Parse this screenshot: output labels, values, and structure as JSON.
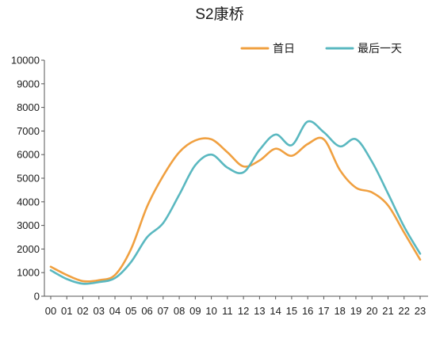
{
  "chart_data": {
    "type": "line",
    "title": "S2康桥",
    "xlabel": "",
    "ylabel": "",
    "categories": [
      "00",
      "01",
      "02",
      "03",
      "04",
      "05",
      "06",
      "07",
      "08",
      "09",
      "10",
      "11",
      "12",
      "13",
      "14",
      "15",
      "16",
      "17",
      "18",
      "19",
      "20",
      "21",
      "22",
      "23"
    ],
    "ylim": [
      0,
      10000
    ],
    "yticks": [
      0,
      1000,
      2000,
      3000,
      4000,
      5000,
      6000,
      7000,
      8000,
      9000,
      10000
    ],
    "grid": false,
    "legend_position": "top-right",
    "series": [
      {
        "name": "首日",
        "color": "#F0A040",
        "values": [
          1250,
          900,
          640,
          680,
          900,
          2000,
          3800,
          5100,
          6100,
          6600,
          6650,
          6100,
          5500,
          5750,
          6250,
          5950,
          6450,
          6650,
          5350,
          4600,
          4400,
          3850,
          2700,
          1550
        ]
      },
      {
        "name": "最后一天",
        "color": "#5AB8C0",
        "values": [
          1100,
          730,
          530,
          600,
          770,
          1450,
          2500,
          3100,
          4300,
          5550,
          6000,
          5450,
          5250,
          6200,
          6850,
          6400,
          7400,
          6950,
          6350,
          6650,
          5700,
          4350,
          2950,
          1800
        ]
      }
    ]
  }
}
